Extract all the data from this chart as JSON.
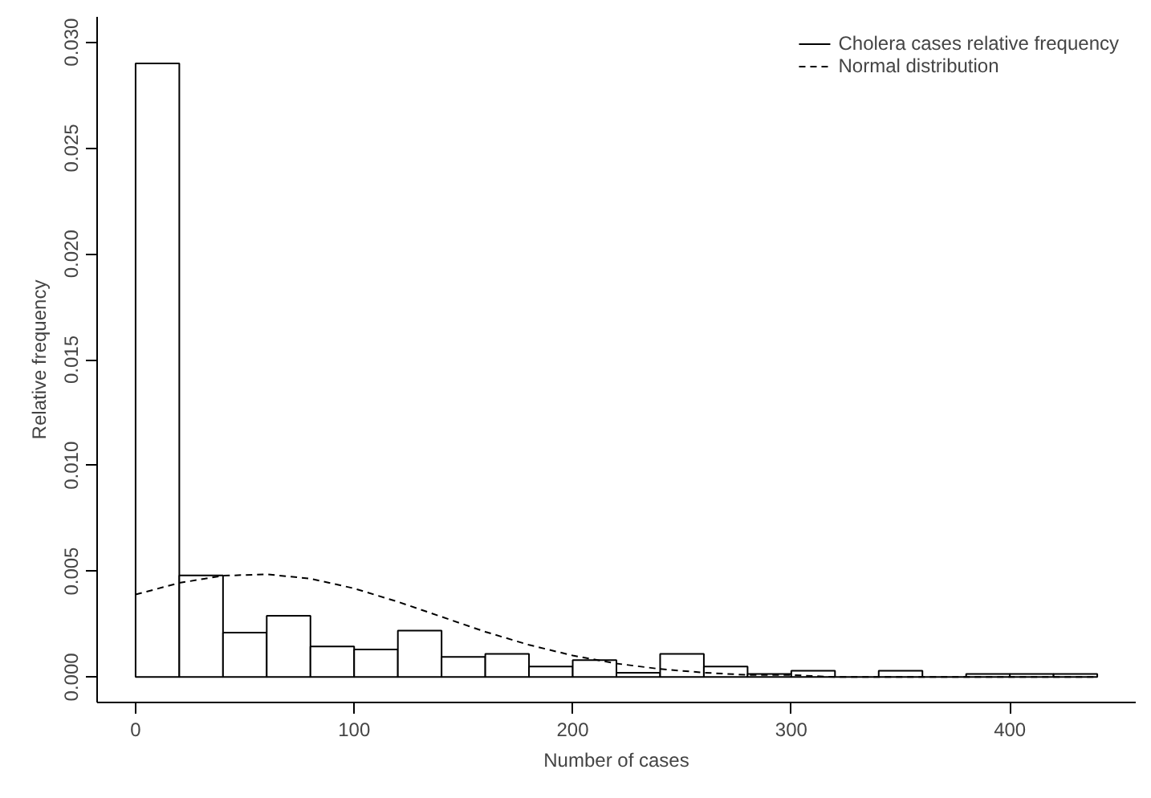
{
  "chart_data": {
    "type": "histogram",
    "xlabel": "Number of cases",
    "ylabel": "Relative frequency",
    "bins": [
      0,
      20,
      40,
      60,
      80,
      100,
      120,
      140,
      160,
      180,
      200,
      220,
      240,
      260,
      280,
      300,
      320,
      340,
      360,
      380,
      400,
      420,
      440
    ],
    "series": [
      {
        "name": "Cholera cases relative frequency",
        "color": "#000000",
        "values": [
          0.029,
          0.0048,
          0.0021,
          0.0029,
          0.00145,
          0.0013,
          0.0022,
          0.00095,
          0.0011,
          0.0005,
          0.0008,
          0.0002,
          0.0011,
          0.0005,
          0.00015,
          0.0003,
          0,
          0.0003,
          0,
          0.00015,
          0.00015,
          0.00015
        ]
      },
      {
        "type": "line",
        "name": "Normal distribution",
        "color": "#000000",
        "line_style": "dashed",
        "x": [
          0,
          20,
          40,
          60,
          80,
          100,
          120,
          140,
          160,
          180,
          200,
          220,
          240,
          260,
          280,
          300,
          320,
          340,
          360,
          380,
          400,
          420,
          440
        ],
        "values": [
          0.0039,
          0.00445,
          0.00479,
          0.00486,
          0.00465,
          0.00419,
          0.00356,
          0.00285,
          0.00214,
          0.00152,
          0.00102,
          0.00064,
          0.00038,
          0.00021,
          0.0001,
          0.0001,
          0,
          0,
          0,
          0,
          0,
          0,
          0
        ]
      }
    ],
    "xlim": [
      -17.6,
      457.6
    ],
    "ylim": [
      -0.0012,
      0.0312
    ],
    "xticks": [
      0,
      100,
      200,
      300,
      400
    ],
    "yticks": [
      {
        "value": 0,
        "label": "0.000"
      },
      {
        "value": 0.005,
        "label": "0.005"
      },
      {
        "value": 0.01,
        "label": "0.010"
      },
      {
        "value": 0.015,
        "label": "0.015"
      },
      {
        "value": 0.02,
        "label": "0.020"
      },
      {
        "value": 0.025,
        "label": "0.025"
      },
      {
        "value": 0.03,
        "label": "0.030"
      }
    ],
    "grid": false,
    "legend": "top right"
  }
}
